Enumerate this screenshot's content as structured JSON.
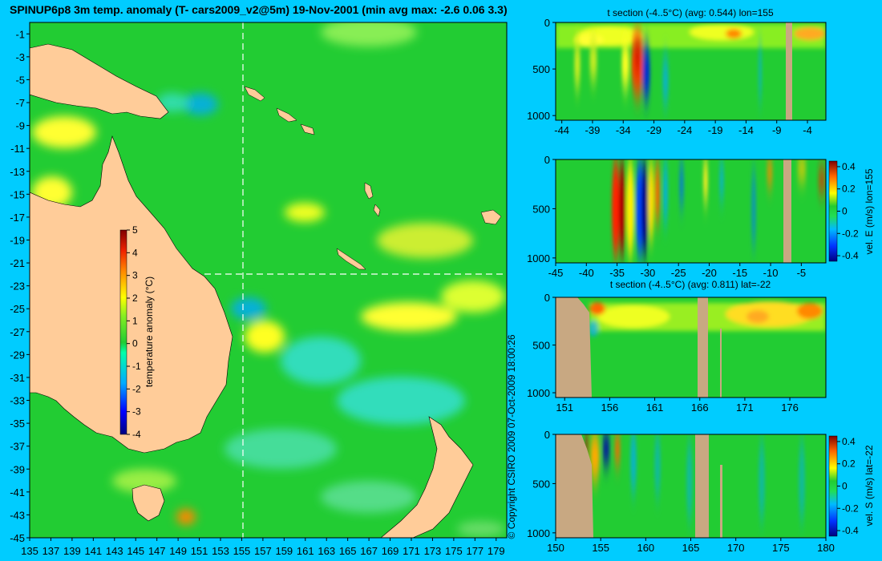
{
  "title": "SPINUP6p8 3m temp. anomaly (T- cars2009_v2@5m) 19-Nov-2001 (min avg max: -2.6 0.06 3.3)",
  "copyright": "© Copyright CSIRO 2009   07-Oct-2009 18:00:26",
  "colors": {
    "background": "#00ccff",
    "land": "#ffcc99",
    "section_land": "#c8a882",
    "ocean_base": "#22cc33"
  },
  "chart_data": [
    {
      "type": "heatmap",
      "name": "map",
      "xlabel": "",
      "ylabel": "",
      "xlim": [
        135,
        180
      ],
      "ylim": [
        -45,
        0
      ],
      "xticks": [
        "135",
        "137",
        "139",
        "141",
        "143",
        "145",
        "147",
        "149",
        "151",
        "153",
        "155",
        "157",
        "159",
        "161",
        "163",
        "165",
        "167",
        "169",
        "171",
        "173",
        "175",
        "177",
        "179"
      ],
      "yticks": [
        "-1",
        "-3",
        "-5",
        "-7",
        "-9",
        "-11",
        "-13",
        "-15",
        "-17",
        "-19",
        "-21",
        "-23",
        "-25",
        "-27",
        "-29",
        "-31",
        "-33",
        "-35",
        "-37",
        "-39",
        "-41",
        "-43",
        "-45"
      ],
      "section_lon": 155,
      "section_lat": -22,
      "colorbar": {
        "label": "temperature anomaly (°C)",
        "ticks": [
          "5",
          "4",
          "3",
          "2",
          "1",
          "0",
          "-1",
          "-2",
          "-3",
          "-4"
        ],
        "range": [
          -4,
          5
        ]
      }
    },
    {
      "type": "heatmap",
      "name": "section-1",
      "title": "t section (-4..5°C) (avg: 0.544) lon=155",
      "xticks": [
        "-44",
        "-39",
        "-34",
        "-29",
        "-24",
        "-19",
        "-14",
        "-9",
        "-4"
      ],
      "yticks": [
        "0",
        "500",
        "1000"
      ],
      "xlim": [
        -45,
        -1
      ],
      "ylim": [
        1050,
        0
      ]
    },
    {
      "type": "heatmap",
      "name": "section-2",
      "title": "",
      "xticks": [
        "-45",
        "-40",
        "-35",
        "-30",
        "-25",
        "-20",
        "-15",
        "-10",
        "-5"
      ],
      "yticks": [
        "0",
        "500",
        "1000"
      ],
      "xlim": [
        -45,
        -1
      ],
      "ylim": [
        1050,
        0
      ],
      "colorbar": {
        "label": "vel. E (m/s) lon=155",
        "ticks": [
          "0.4",
          "0.2",
          "0",
          "-0.2",
          "-0.4"
        ],
        "range": [
          -0.45,
          0.45
        ]
      }
    },
    {
      "type": "heatmap",
      "name": "section-3",
      "title": "t section (-4..5°C) (avg: 0.811) lat=-22",
      "xticks": [
        "151",
        "156",
        "161",
        "166",
        "171",
        "176"
      ],
      "yticks": [
        "0",
        "500",
        "1000"
      ],
      "xlim": [
        150,
        180
      ],
      "ylim": [
        1050,
        0
      ]
    },
    {
      "type": "heatmap",
      "name": "section-4",
      "title": "",
      "xticks": [
        "150",
        "155",
        "160",
        "165",
        "170",
        "175",
        "180"
      ],
      "yticks": [
        "0",
        "500",
        "1000"
      ],
      "xlim": [
        150,
        180
      ],
      "ylim": [
        1050,
        0
      ],
      "colorbar": {
        "label": "vel. S (m/s) lat=-22",
        "ticks": [
          "0.4",
          "0.2",
          "0",
          "-0.2",
          "-0.4"
        ],
        "range": [
          -0.45,
          0.45
        ]
      }
    }
  ]
}
